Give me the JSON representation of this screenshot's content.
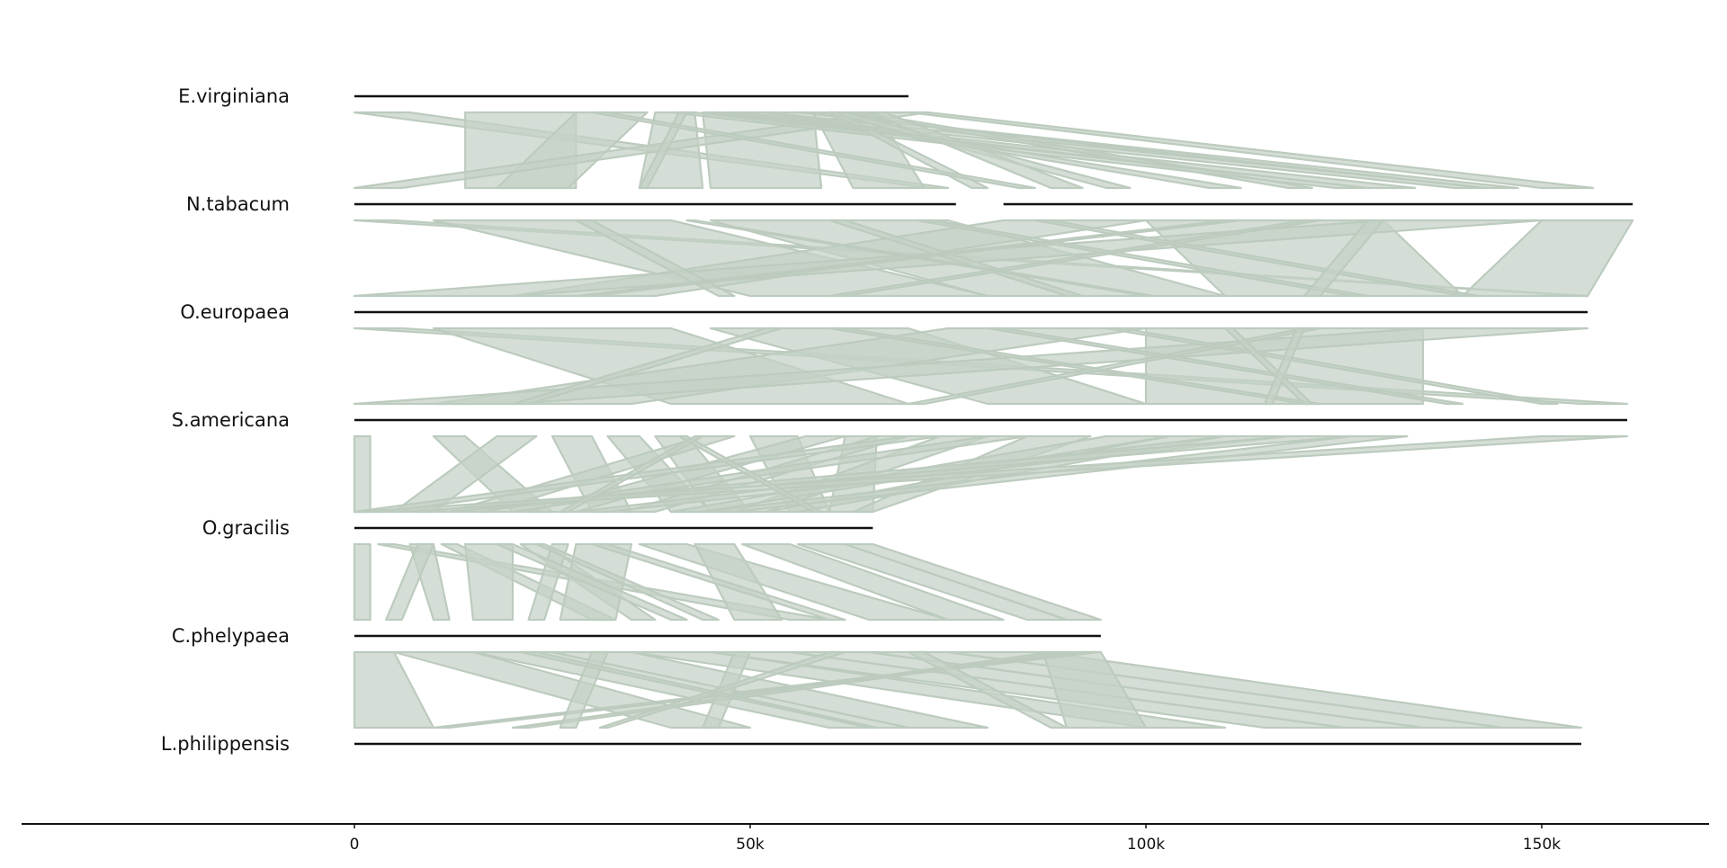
{
  "chart_data": {
    "type": "synteny",
    "title": "",
    "xlabel": "",
    "ylabel": "",
    "x_range": [
      -42000,
      171000
    ],
    "x_ticks": [
      {
        "value": 0,
        "label": "0"
      },
      {
        "value": 50000,
        "label": "50k"
      },
      {
        "value": 100000,
        "label": "100k"
      },
      {
        "value": 150000,
        "label": "150k"
      }
    ],
    "grid": false,
    "legend": "none",
    "colors": {
      "link_fill": "#c5d1c6",
      "link_stroke": "#bccbbe",
      "genome_line": "#111111",
      "axis": "#111111"
    },
    "genomes": [
      {
        "name": "E.virginiana",
        "segments": [
          [
            0,
            70000
          ]
        ]
      },
      {
        "name": "N.tabacum",
        "segments": [
          [
            0,
            76000
          ],
          [
            82000,
            161500
          ]
        ]
      },
      {
        "name": "O.europaea",
        "segments": [
          [
            0,
            155800
          ]
        ]
      },
      {
        "name": "S.americana",
        "segments": [
          [
            0,
            160800
          ]
        ]
      },
      {
        "name": "O.gracilis",
        "segments": [
          [
            0,
            65500
          ]
        ]
      },
      {
        "name": "C.phelypaea",
        "segments": [
          [
            0,
            94300
          ]
        ]
      },
      {
        "name": "L.philippensis",
        "segments": [
          [
            0,
            155000
          ]
        ]
      }
    ],
    "links": [
      [
        [
          0,
          7000,
          72500,
          75000
        ],
        [
          14000,
          28000,
          14000,
          28000
        ],
        [
          28000,
          37000,
          18000,
          27000
        ],
        [
          38000,
          43000,
          36000,
          44000
        ],
        [
          44000,
          58000,
          45000,
          59000
        ],
        [
          58000,
          66000,
          63000,
          72000
        ],
        [
          66000,
          72500,
          0,
          6000
        ],
        [
          45000,
          46000,
          128000,
          134000
        ],
        [
          56000,
          57000,
          143000,
          147000
        ],
        [
          48000,
          52000,
          139000,
          143000
        ],
        [
          62000,
          64000,
          118000,
          121000
        ],
        [
          40000,
          43000,
          124000,
          128000
        ],
        [
          70000,
          72500,
          150000,
          156500
        ],
        [
          60000,
          62000,
          95000,
          98000
        ],
        [
          65000,
          67000,
          88000,
          92000
        ],
        [
          60000,
          61000,
          78000,
          80000
        ],
        [
          41000,
          42000,
          36000,
          37000
        ],
        [
          52000,
          53000,
          108000,
          112000
        ],
        [
          30000,
          32000,
          84000,
          86000
        ]
      ],
      [
        [
          0,
          5000,
          155000,
          155800
        ],
        [
          10000,
          40000,
          50000,
          80000
        ],
        [
          45000,
          75000,
          80000,
          110000
        ],
        [
          82000,
          100000,
          20000,
          38000
        ],
        [
          100000,
          130000,
          110000,
          140000
        ],
        [
          130000,
          150000,
          0,
          20000
        ],
        [
          150000,
          161500,
          140000,
          155800
        ],
        [
          60000,
          62000,
          90000,
          92000
        ],
        [
          120000,
          122000,
          60000,
          62000
        ],
        [
          28000,
          30000,
          46000,
          48000
        ],
        [
          71000,
          73000,
          126000,
          128000
        ],
        [
          86000,
          88000,
          140000,
          142000
        ],
        [
          128000,
          130000,
          120000,
          122000
        ],
        [
          42000,
          43000,
          100000,
          101000
        ],
        [
          110000,
          112000,
          28000,
          30000
        ]
      ],
      [
        [
          0,
          6000,
          155000,
          160800
        ],
        [
          10000,
          40000,
          40000,
          70000
        ],
        [
          45000,
          70000,
          80000,
          100000
        ],
        [
          75000,
          100000,
          10000,
          35000
        ],
        [
          100000,
          135000,
          100000,
          135000
        ],
        [
          135000,
          155800,
          0,
          20000
        ],
        [
          60000,
          62000,
          120000,
          122000
        ],
        [
          120000,
          122000,
          70000,
          72000
        ],
        [
          95000,
          97000,
          150000,
          152000
        ],
        [
          52000,
          54000,
          20000,
          22000
        ],
        [
          80000,
          82000,
          138000,
          140000
        ],
        [
          110000,
          111000,
          120000,
          121000
        ],
        [
          119000,
          120000,
          115000,
          116000
        ]
      ],
      [
        [
          0,
          2000,
          0,
          2000
        ],
        [
          10000,
          14000,
          20000,
          25000
        ],
        [
          18000,
          23000,
          5000,
          10000
        ],
        [
          25000,
          30000,
          30000,
          35000
        ],
        [
          32000,
          36000,
          40000,
          45000
        ],
        [
          38000,
          42000,
          45000,
          50000
        ],
        [
          44000,
          48000,
          12000,
          17000
        ],
        [
          50000,
          56000,
          55000,
          60000
        ],
        [
          57000,
          62000,
          22000,
          28000
        ],
        [
          62000,
          66000,
          60000,
          65500
        ],
        [
          66000,
          70000,
          34000,
          38000
        ],
        [
          70000,
          74000,
          0,
          4000
        ],
        [
          74000,
          80000,
          48000,
          52000
        ],
        [
          80000,
          85000,
          16000,
          20000
        ],
        [
          85000,
          93000,
          63000,
          65500
        ],
        [
          95000,
          103000,
          40000,
          44000
        ],
        [
          103000,
          110000,
          52000,
          56000
        ],
        [
          110000,
          118000,
          28000,
          32000
        ],
        [
          118000,
          126000,
          8000,
          12000
        ],
        [
          126000,
          133000,
          44000,
          48000
        ],
        [
          150000,
          160800,
          0,
          6000
        ],
        [
          41000,
          42000,
          58000,
          59000
        ],
        [
          43000,
          44000,
          26000,
          27000
        ]
      ],
      [
        [
          0,
          2000,
          0,
          2000
        ],
        [
          3000,
          5000,
          55000,
          60000
        ],
        [
          7000,
          10000,
          10000,
          12000
        ],
        [
          11000,
          13000,
          30000,
          33000
        ],
        [
          14000,
          20000,
          15000,
          20000
        ],
        [
          21000,
          24000,
          35000,
          38000
        ],
        [
          25000,
          27000,
          22000,
          24000
        ],
        [
          28000,
          35000,
          26000,
          33000
        ],
        [
          36000,
          42000,
          65000,
          75000
        ],
        [
          43000,
          48000,
          48000,
          54000
        ],
        [
          49000,
          55000,
          75000,
          82000
        ],
        [
          56000,
          62000,
          85000,
          90000
        ],
        [
          62000,
          65500,
          90000,
          94300
        ],
        [
          18000,
          20000,
          40000,
          42000
        ],
        [
          23000,
          24000,
          44000,
          46000
        ],
        [
          30000,
          32000,
          60000,
          62000
        ],
        [
          8000,
          10000,
          4000,
          6000
        ]
      ],
      [
        [
          0,
          5000,
          0,
          10000
        ],
        [
          5000,
          15000,
          40000,
          50000
        ],
        [
          15000,
          25000,
          60000,
          70000
        ],
        [
          25000,
          35000,
          70000,
          80000
        ],
        [
          35000,
          45000,
          100000,
          110000
        ],
        [
          45000,
          55000,
          115000,
          125000
        ],
        [
          55000,
          65000,
          125000,
          135000
        ],
        [
          65000,
          75000,
          135000,
          145000
        ],
        [
          75000,
          87000,
          145000,
          155000
        ],
        [
          87000,
          94300,
          90000,
          100000
        ],
        [
          88000,
          90000,
          20000,
          22000
        ],
        [
          92000,
          94000,
          10000,
          12000
        ],
        [
          48000,
          50000,
          44000,
          46000
        ],
        [
          70000,
          72000,
          88000,
          90000
        ],
        [
          30000,
          32000,
          26000,
          28000
        ],
        [
          60000,
          62000,
          31000,
          32000
        ],
        [
          21000,
          23000,
          65000,
          66000
        ]
      ]
    ]
  }
}
